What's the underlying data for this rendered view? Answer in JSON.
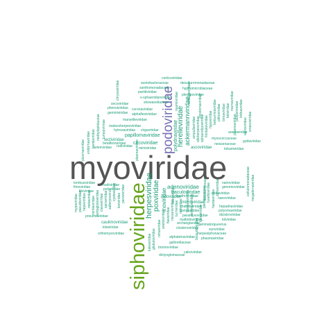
{
  "colors": {
    "largest": "#555555",
    "second": "#66a61e",
    "third": "#7570b3",
    "common": "#1b9e77"
  },
  "words": {
    "myoviridae": "myoviridae",
    "siphoviridae": "siphoviridae",
    "podoviridae": "podoviridae",
    "herpesviridae": "herpesviridae",
    "poxviridae": "poxviridae",
    "inoviridae": "inoviridae",
    "herelleviridae": "herelleviridae",
    "ackermannviridae": "ackermannviridae",
    "polydnaviridae": "polydnaviridae",
    "adenoviridae": "adenoviridae",
    "baculoviridae": "baculoviridae",
    "papillomaviridae": "papillomaviridae",
    "circoviridae": "circoviridae",
    "microviridae": "microviridae",
    "tectiviridae": "tectiviridae",
    "caulimoviridae": "caulimoviridae",
    "corticoviridae": "corticoviridae",
    "acetobacteraceae": "acetobacteraceae",
    "desulfuromonadaceae": "desulfuromonadaceae",
    "xanthomonadaceae": "xanthomonadaceae",
    "hyphomicrobiaceae": "hyphomicrobiaceae",
    "partitiviridae": "partitiviridae",
    "pleolipoviridae": "pleolipoviridae",
    "chrysoviridae": "chrysoviridae",
    "spiraeolipoviridae": "s-sphaerolipoviridae",
    "shewanellaceae": "shewanellaceae",
    "secoviridae": "secoviridae",
    "phenuiviridae": "phenuiviridae",
    "geminiviridae": "geminiviridae",
    "coronaviridae": "coronaviridae",
    "alphaflexiviridae": "alphaflexiviridae",
    "marseilleviridae": "marseilleviridae",
    "malacoherpesviridae": "malacoherpesviridae",
    "hytrosaviridae": "hytrosaviridae",
    "virgaviridae": "virgaviridae",
    "betaflexiviridae": "betaflexiviridae",
    "rudiviridae": "rudiviridae",
    "arteriviridae": "arteriviridae",
    "mimiviridae": "mimiviridae",
    "iridoviridae": "iridoviridae",
    "ascoviridae": "ascoviridae",
    "picornaviridae": "picornaviridae",
    "tombusviridae": "tombusviridae",
    "fimoviridae": "fimoviridae",
    "filoviridae": "filoviridae",
    "nudiviridae": "nudiviridae",
    "potyviridae": "potyviridae",
    "bromoviridae": "bromoviridae",
    "hepeviridae": "hepeviridae",
    "lipothrixviridae": "lipothrixviridae",
    "rhabdoviridae": "rhabdoviridae",
    "bunyaviridae": "bunyaviridae",
    "nairoviridae": "nairoviridae",
    "genomoviridae": "genomoviridae",
    "alloherpesviridae": "alloherpesviridae",
    "retroviridae": "retroviridae",
    "nodaviridae": "nodaviridae",
    "nanoviridae": "nanoviridae",
    "arenaviridae": "arenaviridae",
    "myxococcaceae": "myxococcaceae",
    "guttaviridae": "guttaviridae",
    "neisseriaceae": "neisseriaceae",
    "tobaniviridae": "tobaniviridae",
    "plasmaviridae": "plasmaviridae",
    "closteroviridae": "closteroviridae",
    "pneumoviridae": "pneumoviridae",
    "kitaviridae": "kitaviridae",
    "orthomyxoviridae": "orthomyxoviridae",
    "paramyxoviridae": "paramyxoviridae",
    "archangiaceae": "archangiaceae",
    "alphatetraviridae": "alphatetraviridae",
    "galloreliaceae": "gallorellaceae",
    "gammatorquevirus": "gammatorquevirus",
    "herpesiphonaceae": "herpesiphonaceae",
    "phasmaviridae": "phasmaviridae",
    "sunviridae": "sunviridae",
    "globuloviridae": "globuloviridae",
    "tolviridae": "tolviridae",
    "dicistroviridae": "dicistroviridae",
    "polyomaviridae": "polyomaviridae",
    "hepadnaviridae": "hepadnaviridae",
    "caliciviridae": "caliciviridae",
    "dictyoglomaceae": "dictyoglomaceae",
    "luteoviridae": "luteoviridae",
    "flaviviridae": "flaviviridae",
    "mesoniviridae": "mesoniviridae",
    "turriviridae": "turriviridae",
    "malbidoviridae": "malbidoviridae",
    "reoviridae": "reoviridae",
    "pleosporaceae": "pleosporaceae",
    "fuselloviridae": "fuselloviridae",
    "hantaviridae": "hantaviridae",
    "zonoviridae": "zonoviridae",
    "cellulomonadaceae": "cellulomonadaceae",
    "megabirnaviridae": "megabirnaviridae",
    "bicaudaviridae": "bicaudaviridae",
    "tymoviridae": "tymoviridae",
    "rhizidiomyceae": "rhizidiomyceae",
    "sedoreoviridae": "sedoreoviridae",
    "nimaviridae": "nimaviridae",
    "anelloviridae": "anelloviridae",
    "mypoviridae": "mypoviridae",
    "pseudoviridae": "pseudoviridae",
    "metaviridae": "metaviridae",
    "lavidaviridae": "lavidaviridae",
    "endornaviridae": "endornaviridae",
    "methylophilaceae": "methylophilaceae",
    "lumpyvirinae": "lumpyvirinae",
    "mimlaviridae": "mimlaviridae",
    "ampullaviridae": "ampullaviridae",
    "closteroviridae2": "closteroviridae",
    "sphaerolipoviridae": "sphaerolipoviridae",
    "finnlakeviridae": "finnlakeviridae",
    "hypoviridae": "hypoviridae",
    "botourmiaviridae": "botourmiaviridae",
    "pithoviridae": "pithoviridae",
    "plasmaviridae2": "plasmaviridae",
    "birnaviridae": "birnaviridae",
    "salterprovirus": "salterprovirus",
    "clavaviridae": "clavaviridae",
    "portogloboviridae": "portogloboviridae",
    "spiraviridae": "spiraviridae",
    "cystoviridae": "cystoviridae",
    "leviviridae": "leviviridae",
    "parvoviridae": "parvoviridae",
    "totiviridae": "totiviridae",
    "marnaviridae": "marnaviridae",
    "pospiviroidae": "pospiviroidae",
    "bidnaviridae": "bidnaviridae",
    "nyamiviridae": "nyamiviridae",
    "amalgaviridae": "amalgaviridae",
    "picobirnaviridae": "picobirnaviridae",
    "astroviridae": "astroviridae",
    "smacoviridae": "smacoviridae"
  }
}
